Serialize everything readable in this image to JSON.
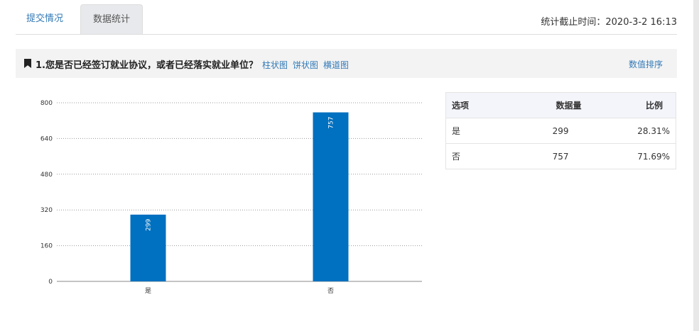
{
  "tabs": [
    {
      "label": "提交情况"
    },
    {
      "label": "数据统计"
    }
  ],
  "stat_time": "统计截止时间：2020-3-2 16:13",
  "question": {
    "title": "1.您是否已经签订就业协议，或者已经落实就业单位？",
    "links": [
      "柱状图",
      "饼状图",
      "横道图"
    ],
    "sort_label": "数值排序"
  },
  "table": {
    "headers": [
      "选项",
      "数据量",
      "比例"
    ],
    "rows": [
      [
        "是",
        "299",
        "28.31%"
      ],
      [
        "否",
        "757",
        "71.69%"
      ]
    ]
  },
  "chart_data": {
    "type": "bar",
    "categories": [
      "是",
      "否"
    ],
    "values": [
      299,
      757
    ],
    "ylim": [
      0,
      800
    ],
    "yticks": [
      0,
      160,
      320,
      480,
      640,
      800
    ],
    "grid": true,
    "bar_color": "#0070c0"
  }
}
